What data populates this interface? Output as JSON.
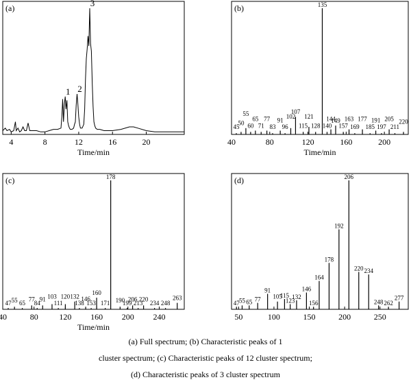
{
  "caption": {
    "line1": "(a) Full spectrum; (b) Characteristic peaks of 1",
    "line2": "cluster spectrum; (c) Characteristic peaks of 12 cluster spectrum;",
    "line3": "(d) Characteristic peaks of 3 cluster spectrum"
  },
  "chart_data": [
    {
      "id": "a",
      "type": "line",
      "panel_label": "(a)",
      "xlabel": "Time/min",
      "ylabel": "",
      "xlim": [
        3,
        24.5
      ],
      "ylim": [
        0,
        100
      ],
      "xticks": [
        4,
        8,
        12,
        16,
        20
      ],
      "x": [
        3.0,
        3.3,
        3.5,
        3.8,
        4.0,
        4.3,
        4.5,
        4.6,
        4.8,
        5.0,
        5.2,
        5.4,
        5.6,
        5.8,
        6.0,
        6.2,
        6.5,
        7.0,
        7.5,
        8.0,
        8.5,
        9.0,
        9.5,
        9.9,
        10.0,
        10.1,
        10.2,
        10.3,
        10.4,
        10.5,
        10.6,
        10.7,
        10.8,
        10.9,
        11.0,
        11.2,
        11.4,
        11.5,
        11.6,
        11.7,
        11.8,
        11.9,
        12.0,
        12.1,
        12.2,
        12.4,
        12.6,
        12.7,
        12.8,
        12.9,
        13.0,
        13.1,
        13.2,
        13.3,
        13.4,
        13.5,
        13.6,
        13.7,
        13.8,
        13.9,
        14.0,
        14.2,
        14.5,
        15.0,
        16.0,
        17.0,
        18.0,
        18.5,
        19.0,
        20.0,
        21.0,
        22.0,
        23.0,
        24.5
      ],
      "values": [
        3,
        5,
        3,
        4,
        2,
        3,
        10,
        3,
        5,
        2,
        3,
        6,
        3,
        3,
        9,
        3,
        3,
        3,
        2,
        2,
        3,
        4,
        4,
        5,
        14,
        28,
        10,
        24,
        30,
        20,
        27,
        10,
        7,
        5,
        4,
        4,
        5,
        8,
        10,
        23,
        32,
        24,
        14,
        8,
        5,
        5,
        8,
        20,
        44,
        60,
        68,
        78,
        70,
        100,
        72,
        66,
        40,
        22,
        10,
        7,
        5,
        4,
        4,
        3,
        3,
        4,
        6,
        6,
        5,
        3,
        2,
        2,
        2,
        2
      ],
      "peak_labels": [
        {
          "x": 10.4,
          "y": 30,
          "text": "1"
        },
        {
          "x": 11.8,
          "y": 32,
          "text": "2"
        },
        {
          "x": 13.3,
          "y": 100,
          "text": "3"
        }
      ]
    },
    {
      "id": "b",
      "type": "bar",
      "panel_label": "(b)",
      "xlabel": "Time/min",
      "xlim": [
        40,
        225
      ],
      "ylim": [
        0,
        100
      ],
      "xticks": [
        40,
        80,
        120,
        160,
        200
      ],
      "x": [
        45,
        50,
        55,
        60,
        65,
        71,
        77,
        83,
        91,
        96,
        102,
        107,
        115,
        121,
        128,
        135,
        140,
        144,
        149,
        157,
        163,
        169,
        177,
        185,
        191,
        197,
        205,
        211,
        220
      ],
      "values": [
        1,
        2,
        5,
        2,
        3,
        2,
        3,
        1,
        3,
        1,
        5,
        14,
        2,
        6,
        2,
        100,
        2,
        4,
        7,
        2,
        4,
        1,
        4,
        1,
        3,
        1,
        4,
        1,
        2
      ],
      "labels": [
        "45",
        "50",
        "55",
        "60",
        "65",
        "71",
        "77",
        "83",
        "91",
        "96",
        "102",
        "107",
        "115",
        "121",
        "128",
        "135",
        "140",
        "144",
        "149",
        "157",
        "163",
        "169",
        "177",
        "185",
        "191",
        "197",
        "205",
        "211",
        "220"
      ]
    },
    {
      "id": "c",
      "type": "bar",
      "panel_label": "(c)",
      "xlabel": "Time/min",
      "xlim": [
        40,
        272
      ],
      "ylim": [
        0,
        100
      ],
      "xticks": [
        40,
        80,
        120,
        160,
        200,
        240
      ],
      "x": [
        47,
        55,
        65,
        77,
        84,
        91,
        103,
        111,
        120,
        132,
        138,
        146,
        153,
        160,
        171,
        178,
        190,
        199,
        206,
        213,
        220,
        234,
        248,
        263
      ],
      "values": [
        1,
        2,
        1,
        3,
        1,
        3,
        4,
        1,
        4,
        6,
        1,
        2,
        1,
        9,
        1,
        100,
        2,
        1,
        3,
        1,
        3,
        1,
        1,
        5
      ],
      "labels": [
        "47",
        "55",
        "65",
        "77",
        "84",
        "91",
        "103",
        "111",
        "120",
        "132",
        "138",
        "146",
        "153",
        "160",
        "171",
        "178",
        "190",
        "199",
        "206",
        "213",
        "220",
        "234",
        "248",
        "263"
      ]
    },
    {
      "id": "d",
      "type": "bar",
      "panel_label": "(d)",
      "xlabel": "",
      "xlim": [
        40,
        290
      ],
      "ylim": [
        0,
        100
      ],
      "xticks": [
        50,
        100,
        150,
        200,
        250
      ],
      "x": [
        47,
        55,
        65,
        77,
        91,
        105,
        115,
        123,
        132,
        146,
        156,
        164,
        178,
        192,
        206,
        220,
        234,
        248,
        262,
        277
      ],
      "values": [
        2,
        3,
        3,
        5,
        12,
        6,
        8,
        4,
        7,
        13,
        2,
        22,
        36,
        62,
        100,
        29,
        27,
        3,
        2,
        6
      ],
      "labels": [
        "47",
        "55",
        "65",
        "77",
        "91",
        "105",
        "115",
        "123",
        "132",
        "146",
        "156",
        "164",
        "178",
        "192",
        "206",
        "220",
        "234",
        "248",
        "262",
        "277"
      ]
    }
  ]
}
